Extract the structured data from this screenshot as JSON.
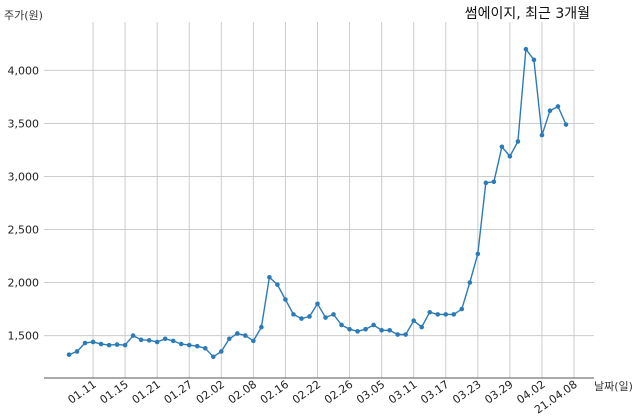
{
  "chart_data": {
    "type": "line",
    "title": "썸에이지, 최근 3개월",
    "xlabel": "날짜(일)",
    "ylabel": "주가(원)",
    "y_ticks": [
      "1,500",
      "2,000",
      "2,500",
      "3,000",
      "3,500",
      "4,000"
    ],
    "y_tick_values": [
      1500,
      2000,
      2500,
      3000,
      3500,
      4000
    ],
    "ylim": [
      1100,
      4400
    ],
    "x_tick_labels": [
      "01.11",
      "01.15",
      "01.21",
      "01.27",
      "02.02",
      "02.08",
      "02.16",
      "02.22",
      "02.26",
      "03.05",
      "03.11",
      "03.17",
      "03.23",
      "03.29",
      "04.02",
      "21.04.08"
    ],
    "x_tick_indices": [
      3,
      7,
      11,
      15,
      19,
      23,
      27,
      31,
      35,
      39,
      43,
      47,
      51,
      55,
      59,
      63
    ],
    "grid": true,
    "line_color": "#2b7bb9",
    "series": [
      {
        "name": "",
        "values": [
          1320,
          1350,
          1430,
          1440,
          1420,
          1410,
          1415,
          1410,
          1500,
          1460,
          1455,
          1440,
          1470,
          1450,
          1420,
          1410,
          1400,
          1380,
          1300,
          1350,
          1470,
          1520,
          1500,
          1450,
          1580,
          2050,
          1980,
          1840,
          1700,
          1660,
          1680,
          1800,
          1670,
          1700,
          1600,
          1560,
          1540,
          1560,
          1600,
          1550,
          1550,
          1510,
          1510,
          1640,
          1580,
          1720,
          1700,
          1700,
          1700,
          1750,
          2000,
          2270,
          2940,
          2950,
          3280,
          3190,
          3330,
          4200,
          4100,
          3390,
          3620,
          3660,
          3490
        ]
      }
    ]
  }
}
